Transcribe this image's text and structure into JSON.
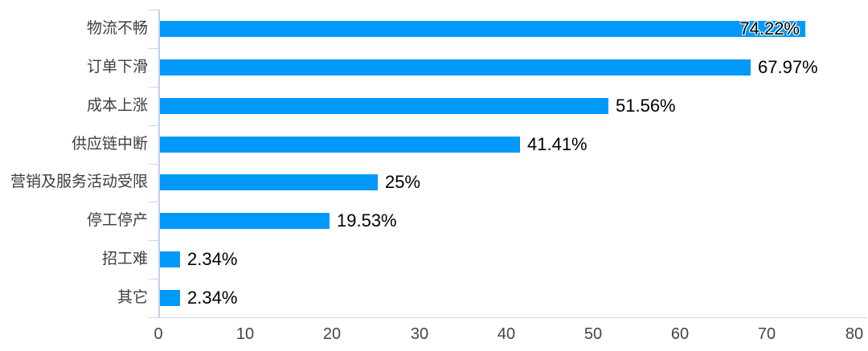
{
  "chart_data": {
    "type": "bar",
    "orientation": "horizontal",
    "title": "",
    "categories": [
      "物流不畅",
      "订单下滑",
      "成本上涨",
      "供应链中断",
      "营销及服务活动受限",
      "停工停产",
      "招工难",
      "其它"
    ],
    "values": [
      74.22,
      67.97,
      51.56,
      41.41,
      25,
      19.53,
      2.34,
      2.34
    ],
    "value_labels": [
      "74.22%",
      "67.97%",
      "51.56%",
      "41.41%",
      "25%",
      "19.53%",
      "2.34%",
      "2.34%"
    ],
    "x_ticks": [
      "0",
      "10",
      "20",
      "30",
      "40",
      "50",
      "60",
      "70",
      "80"
    ],
    "x_tick_values": [
      0,
      10,
      20,
      30,
      40,
      50,
      60,
      70,
      80
    ],
    "xlim": [
      0,
      80
    ],
    "grid": false,
    "legend_position": "none",
    "value_label_placement": "outside, first bar label inside at bar end"
  },
  "colors": {
    "bar": "#0099FA",
    "category_label": "#3d3d3d",
    "value_label": "#000000",
    "inside_label_outline": "#ffffff",
    "x_tick_label": "#454545",
    "y_axis_line": "#c6d0ea",
    "x_axis_line": "#d4d9e6",
    "boundary_tick": "#ccd5ec",
    "background": "#ffffff"
  }
}
